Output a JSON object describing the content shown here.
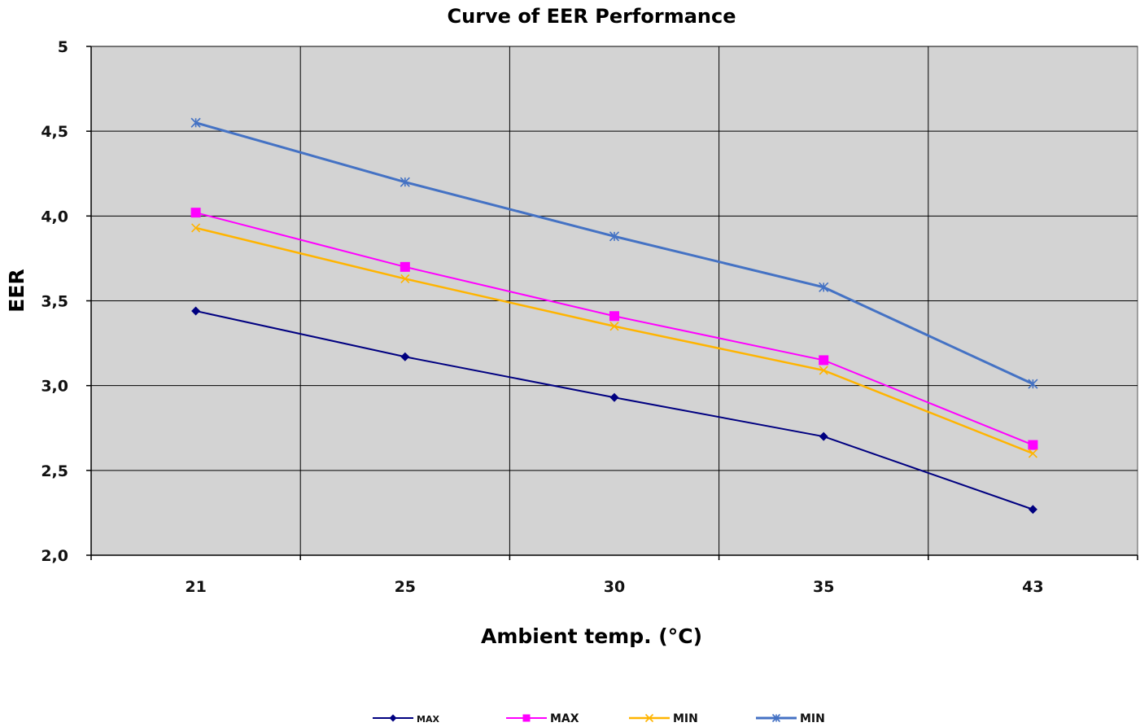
{
  "chart_data": {
    "type": "line",
    "title": "Curve of EER Performance",
    "xlabel": "Ambient temp. (°C)",
    "ylabel": "EER",
    "categories": [
      "21",
      "25",
      "30",
      "35",
      "43"
    ],
    "ylim": [
      2.0,
      5.0
    ],
    "yticks": [
      "2,0",
      "2,5",
      "3,0",
      "3,5",
      "4,0",
      "4,5",
      "5"
    ],
    "grid": true,
    "legend_position": "bottom",
    "plot_background": "#d3d3d3",
    "series": [
      {
        "name": "MAX",
        "color": "#000080",
        "marker": "diamond",
        "values": [
          3.44,
          3.17,
          2.93,
          2.7,
          2.27
        ]
      },
      {
        "name": "MAX",
        "color": "#ff00ff",
        "marker": "square",
        "values": [
          4.02,
          3.7,
          3.41,
          3.15,
          2.65
        ]
      },
      {
        "name": "MIN",
        "color": "#ffb400",
        "marker": "x",
        "values": [
          3.93,
          3.63,
          3.35,
          3.09,
          2.6
        ]
      },
      {
        "name": "MIN",
        "color": "#4472c4",
        "marker": "asterisk",
        "values": [
          4.55,
          4.2,
          3.88,
          3.58,
          3.01
        ]
      }
    ]
  }
}
